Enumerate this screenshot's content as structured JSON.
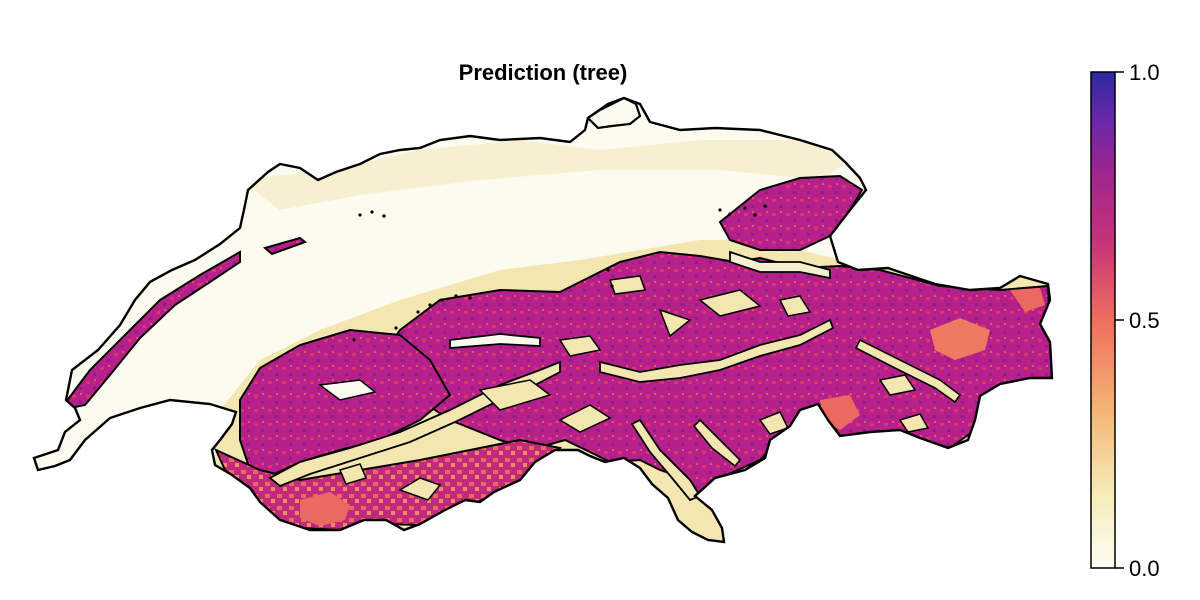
{
  "title": "Prediction (tree)",
  "colorbar": {
    "ticks": [
      {
        "value": 1.0,
        "label": "1.0"
      },
      {
        "value": 0.5,
        "label": "0.5"
      },
      {
        "value": 0.0,
        "label": "0.0"
      }
    ],
    "range": [
      0.0,
      1.0
    ],
    "colormap": "magma (reversed)",
    "colors": [
      "#fcfdf4",
      "#f5ecb7",
      "#f4b072",
      "#ee6e5f",
      "#c73279",
      "#9c2690",
      "#6a28a8",
      "#2d2aa0"
    ]
  },
  "map": {
    "region": "Switzerland",
    "value_meaning": "predicted probability",
    "outline_color": "#000000",
    "low_value_color": "#fcfbf0",
    "high_value_color": "#b5208b",
    "mid_value_color": "#ea6a62"
  }
}
